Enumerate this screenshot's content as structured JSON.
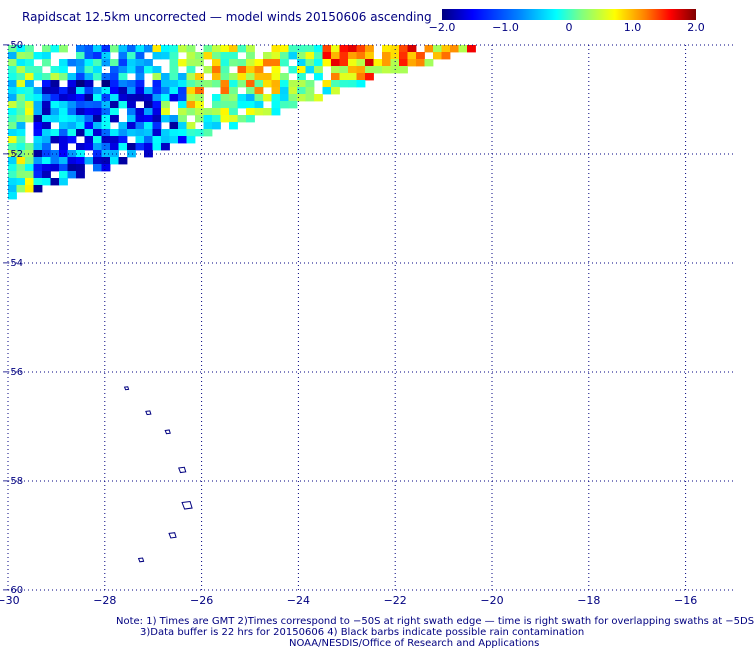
{
  "title": "Rapidscat 12.5km uncorrected — model winds 20150606 ascending",
  "colorbar": {
    "tick_labels": [
      "−2.0",
      "−1.0",
      "0",
      "1.0",
      "2.0"
    ],
    "ticks": [
      -2.0,
      -1.0,
      0,
      1.0,
      2.0
    ],
    "range": [
      -2.0,
      2.0
    ],
    "colors": [
      "#00007f",
      "#0000ff",
      "#0080ff",
      "#00ffff",
      "#80ff80",
      "#ffff00",
      "#ff8000",
      "#ff0000",
      "#7f0000"
    ]
  },
  "map": {
    "lon_range": [
      -30,
      -15
    ],
    "lat_range": [
      -50,
      -60
    ],
    "x_tick_labels": [
      "−30",
      "−28",
      "−26",
      "−24",
      "−22",
      "−20",
      "−18",
      "−16"
    ],
    "x_ticks": [
      -30,
      -28,
      -26,
      -24,
      -22,
      -20,
      -18,
      -16
    ],
    "y_tick_labels": [
      "−50",
      "−52",
      "−54",
      "−56",
      "−58",
      "−60"
    ],
    "y_ticks": [
      -50,
      -52,
      -54,
      -56,
      -58,
      -60
    ],
    "grid": "dotted",
    "grid_color": "#000080",
    "coast_color": "#000080"
  },
  "notes": {
    "line1": "Note: 1) Times are GMT 2)Times correspond to −50S at right swath edge — time is right swath for overlapping swaths at −5DS",
    "line2": "3)Data buffer is 22 hrs for 20150606 4) Black barbs indicate possible rain contamination",
    "line3": "NOAA/NESDIS/Office of Research and Applications"
  }
}
